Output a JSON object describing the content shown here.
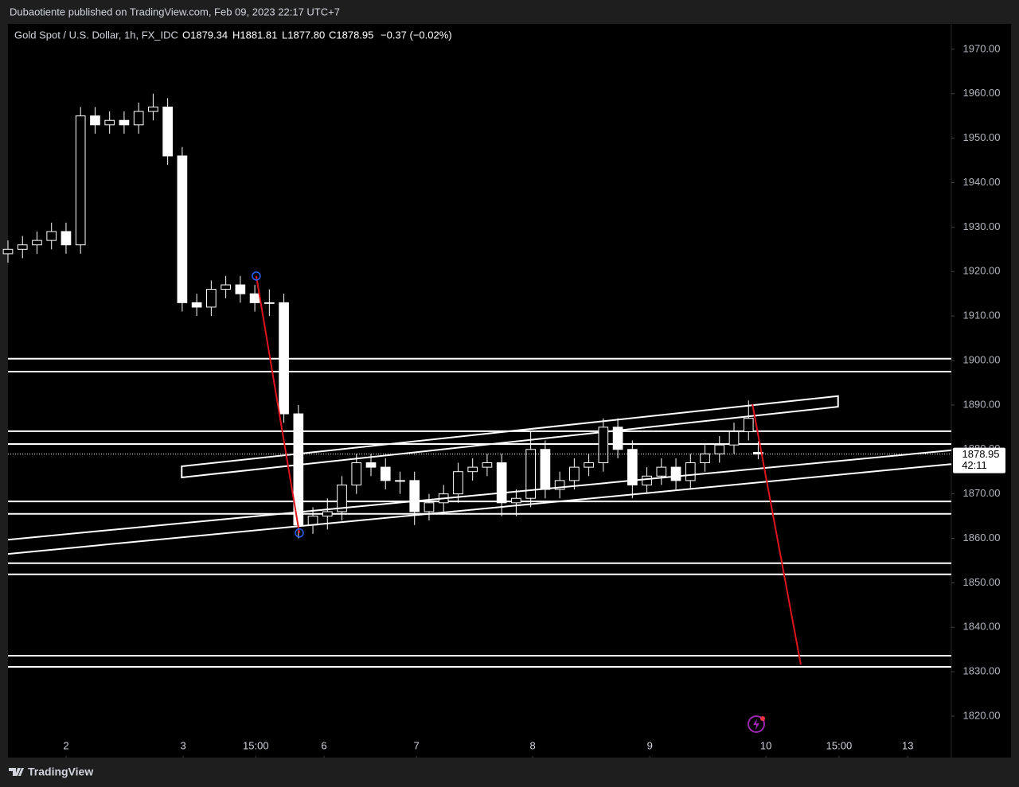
{
  "publisher": "Dubaotiente published on TradingView.com, Feb 09, 2023 22:17 UTC+7",
  "footer": "TradingView",
  "chart_data": {
    "type": "candlestick",
    "title": "Gold Spot / U.S. Dollar, 1h, FX_IDC",
    "ohlc_header": [
      "O1879.34",
      "H1881.81",
      "L1877.80",
      "C1878.95",
      "−0.37 (−0.02%)"
    ],
    "x": [
      0,
      3,
      6,
      9,
      12,
      15,
      18,
      21,
      24,
      27,
      30,
      33,
      36,
      39,
      42,
      45,
      48,
      51,
      54,
      57,
      60,
      63,
      66,
      69,
      72,
      75,
      78,
      81,
      84,
      87,
      90,
      93,
      96,
      99,
      102,
      105,
      108,
      111,
      114,
      117,
      120,
      123,
      126,
      129,
      132,
      135,
      138,
      141,
      144,
      147,
      150,
      153,
      155
    ],
    "open": [
      1924,
      1925,
      1926,
      1927,
      1929,
      1926,
      1955,
      1953,
      1954,
      1953,
      1956,
      1957,
      1946,
      1913,
      1912,
      1916,
      1917,
      1915,
      1913,
      1913,
      1888,
      1863,
      1865,
      1866,
      1872,
      1877,
      1876,
      1873,
      1873,
      1866,
      1868,
      1870,
      1875,
      1876,
      1877,
      1868,
      1869,
      1880,
      1871,
      1873,
      1876,
      1877,
      1885,
      1880,
      1872,
      1874,
      1876,
      1873,
      1877,
      1879,
      1881,
      1884,
      1879.34
    ],
    "high": [
      1927,
      1928,
      1929,
      1931,
      1931,
      1957,
      1957,
      1956,
      1956,
      1958,
      1960,
      1959,
      1948,
      1915,
      1918,
      1919,
      1919,
      1917,
      1916,
      1915,
      1890,
      1867,
      1869,
      1874,
      1879,
      1879,
      1878,
      1875,
      1875,
      1870,
      1872,
      1877,
      1878,
      1879,
      1879,
      1871,
      1884,
      1882,
      1875,
      1878,
      1879,
      1887,
      1887,
      1882,
      1876,
      1878,
      1878,
      1879,
      1881,
      1883,
      1886,
      1891,
      1881.81
    ],
    "low": [
      1922,
      1923,
      1924,
      1925,
      1924,
      1924,
      1951,
      1951,
      1951,
      1951,
      1954,
      1944,
      1911,
      1910,
      1910,
      1914,
      1913,
      1911,
      1910,
      1886,
      1860,
      1861,
      1862,
      1864,
      1870,
      1874,
      1871,
      1870,
      1863,
      1864,
      1866,
      1868,
      1873,
      1874,
      1865,
      1865,
      1867,
      1869,
      1869,
      1871,
      1874,
      1875,
      1878,
      1869,
      1870,
      1872,
      1871,
      1871,
      1875,
      1877,
      1879,
      1882,
      1877.8
    ],
    "close": [
      1925,
      1926,
      1927,
      1929,
      1926,
      1955,
      1953,
      1954,
      1953,
      1956,
      1957,
      1946,
      1913,
      1912,
      1916,
      1917,
      1915,
      1913,
      1913,
      1888,
      1863,
      1865,
      1866,
      1872,
      1877,
      1876,
      1873,
      1873,
      1866,
      1868,
      1870,
      1875,
      1876,
      1877,
      1868,
      1869,
      1880,
      1871,
      1873,
      1876,
      1877,
      1885,
      1880,
      1872,
      1874,
      1876,
      1873,
      1877,
      1879,
      1881,
      1884,
      1887,
      1878.95
    ],
    "color": "#ffffff",
    "xlim": [
      0,
      194.9
    ],
    "xticks": [
      {
        "value": 12,
        "label": "2"
      },
      {
        "value": 36.2,
        "label": "3"
      },
      {
        "value": 51.2,
        "label": "15:00"
      },
      {
        "value": 65.3,
        "label": "6"
      },
      {
        "value": 84.4,
        "label": "7"
      },
      {
        "value": 108.4,
        "label": "8"
      },
      {
        "value": 132.6,
        "label": "9"
      },
      {
        "value": 156.6,
        "label": "10"
      },
      {
        "value": 171.7,
        "label": "15:00"
      },
      {
        "value": 185.9,
        "label": "13"
      }
    ],
    "ylim": [
      1810.7,
      1975.7
    ],
    "yticks": [
      {
        "value": 1820,
        "label": "1820.00"
      },
      {
        "value": 1830,
        "label": "1830.00"
      },
      {
        "value": 1840,
        "label": "1840.00"
      },
      {
        "value": 1850,
        "label": "1850.00"
      },
      {
        "value": 1860,
        "label": "1860.00"
      },
      {
        "value": 1870,
        "label": "1870.00"
      },
      {
        "value": 1880,
        "label": "1880.00"
      },
      {
        "value": 1890,
        "label": "1890.00"
      },
      {
        "value": 1900,
        "label": "1900.00"
      },
      {
        "value": 1910,
        "label": "1910.00"
      },
      {
        "value": 1920,
        "label": "1920.00"
      },
      {
        "value": 1930,
        "label": "1930.00"
      },
      {
        "value": 1940,
        "label": "1940.00"
      },
      {
        "value": 1950,
        "label": "1950.00"
      },
      {
        "value": 1960,
        "label": "1960.00"
      },
      {
        "value": 1970,
        "label": "1970.00"
      }
    ],
    "last_price": 1878.95,
    "countdown": "42:11",
    "horizontal_lines": [
      1900.4,
      1897.5,
      1884.1,
      1881.2,
      1868.3,
      1865.5,
      1854.4,
      1851.9,
      1833.6,
      1831.1
    ],
    "trend_lines": [
      {
        "x": [
          0,
          194.9
        ],
        "y": [
          1859.7,
          1879.8
        ],
        "color": "#ffffff"
      },
      {
        "x": [
          0,
          194.9
        ],
        "y": [
          1856.5,
          1876.7
        ],
        "color": "#ffffff"
      },
      {
        "x": [
          51.3,
          60.2
        ],
        "y": [
          1919.0,
          1861.2
        ],
        "color": "#e0141e"
      },
      {
        "x": [
          153.8,
          163.8
        ],
        "y": [
          1890.2,
          1831.6
        ],
        "color": "#e0141e"
      }
    ],
    "channel_box": {
      "x": [
        35.9,
        171.5,
        171.5,
        35.9
      ],
      "y": [
        1876.2,
        1892.0,
        1889.6,
        1873.7
      ]
    }
  }
}
